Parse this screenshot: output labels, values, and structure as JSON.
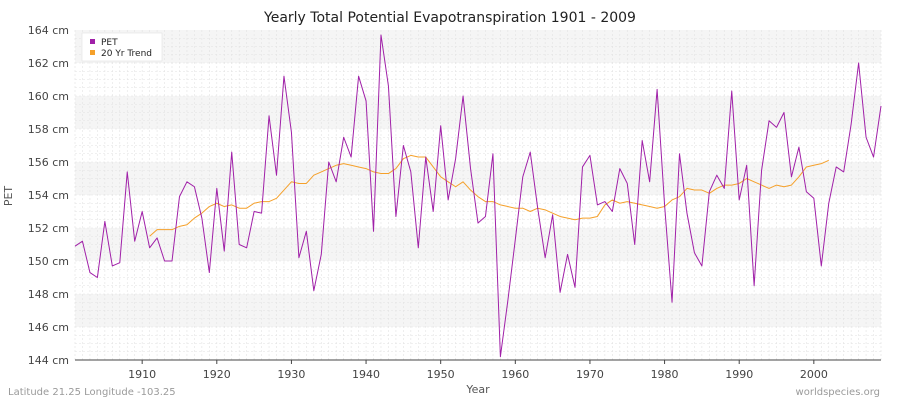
{
  "colors": {
    "pet": "#a020a8",
    "trend": "#f5a02a",
    "band_light": "#f5f5f5",
    "band_white": "#ffffff",
    "grid": "#e2e2e2"
  },
  "footer": {
    "location": "Latitude 21.25 Longitude -103.25",
    "source": "worldspecies.org"
  },
  "chart_data": {
    "type": "line",
    "title": "Yearly Total Potential Evapotranspiration 1901 - 2009",
    "xlabel": "Year",
    "ylabel": "PET",
    "xlim": [
      1901,
      2009
    ],
    "ylim": [
      144,
      164
    ],
    "grid": true,
    "legend_position": "top-left",
    "x_ticks": [
      1910,
      1920,
      1930,
      1940,
      1950,
      1960,
      1970,
      1980,
      1990,
      2000
    ],
    "y_ticks": [
      {
        "value": 144,
        "label": "144 cm"
      },
      {
        "value": 146,
        "label": "146 cm"
      },
      {
        "value": 148,
        "label": "148 cm"
      },
      {
        "value": 150,
        "label": "150 cm"
      },
      {
        "value": 152,
        "label": "152 cm"
      },
      {
        "value": 154,
        "label": "154 cm"
      },
      {
        "value": 156,
        "label": "156 cm"
      },
      {
        "value": 158,
        "label": "158 cm"
      },
      {
        "value": 160,
        "label": "160 cm"
      },
      {
        "value": 162,
        "label": "162 cm"
      },
      {
        "value": 164,
        "label": "164 cm"
      }
    ],
    "series": [
      {
        "name": "PET",
        "x_start": 1901,
        "values": [
          150.9,
          151.2,
          149.3,
          149.0,
          152.4,
          149.7,
          149.9,
          155.4,
          151.2,
          153.0,
          150.8,
          151.4,
          150.0,
          150.0,
          153.9,
          154.8,
          154.5,
          152.6,
          149.3,
          154.4,
          150.6,
          156.6,
          151.0,
          150.8,
          153.0,
          152.9,
          158.8,
          155.2,
          161.2,
          157.8,
          150.2,
          151.8,
          148.2,
          150.4,
          156.0,
          154.8,
          157.5,
          156.3,
          161.2,
          159.7,
          151.8,
          163.7,
          160.6,
          152.7,
          157.0,
          155.4,
          150.8,
          156.3,
          153.0,
          158.2,
          153.7,
          156.2,
          160.0,
          155.6,
          152.3,
          152.7,
          156.5,
          144.2,
          147.6,
          151.3,
          155.1,
          156.6,
          153.2,
          150.2,
          152.8,
          148.1,
          150.4,
          148.4,
          155.7,
          156.4,
          153.4,
          153.6,
          153.0,
          155.6,
          154.7,
          151.0,
          157.3,
          154.8,
          160.4,
          153.4,
          147.5,
          156.5,
          152.9,
          150.5,
          149.7,
          154.2,
          155.2,
          154.4,
          160.3,
          153.7,
          155.8,
          148.5,
          155.5,
          158.5,
          158.1,
          159.0,
          155.1,
          156.9,
          154.2,
          153.8,
          149.7,
          153.5,
          155.7,
          155.4,
          158.3,
          162.0,
          157.5,
          156.3,
          159.4
        ]
      },
      {
        "name": "20 Yr Trend",
        "x_start": 1911,
        "values": [
          151.5,
          151.9,
          151.9,
          151.9,
          152.1,
          152.2,
          152.6,
          152.9,
          153.3,
          153.5,
          153.3,
          153.4,
          153.2,
          153.2,
          153.5,
          153.6,
          153.6,
          153.8,
          154.3,
          154.8,
          154.7,
          154.7,
          155.2,
          155.4,
          155.6,
          155.8,
          155.9,
          155.8,
          155.7,
          155.6,
          155.4,
          155.3,
          155.3,
          155.6,
          156.2,
          156.4,
          156.3,
          156.3,
          155.7,
          155.1,
          154.8,
          154.5,
          154.8,
          154.3,
          153.9,
          153.6,
          153.6,
          153.4,
          153.3,
          153.2,
          153.2,
          153.0,
          153.2,
          153.1,
          152.9,
          152.7,
          152.6,
          152.5,
          152.6,
          152.6,
          152.7,
          153.4,
          153.7,
          153.5,
          153.6,
          153.5,
          153.4,
          153.3,
          153.2,
          153.3,
          153.7,
          153.9,
          154.4,
          154.3,
          154.3,
          154.1,
          154.4,
          154.6,
          154.6,
          154.7,
          155.0,
          154.8,
          154.6,
          154.4,
          154.6,
          154.5,
          154.6,
          155.1,
          155.7,
          155.8,
          155.9,
          156.1
        ]
      }
    ]
  }
}
